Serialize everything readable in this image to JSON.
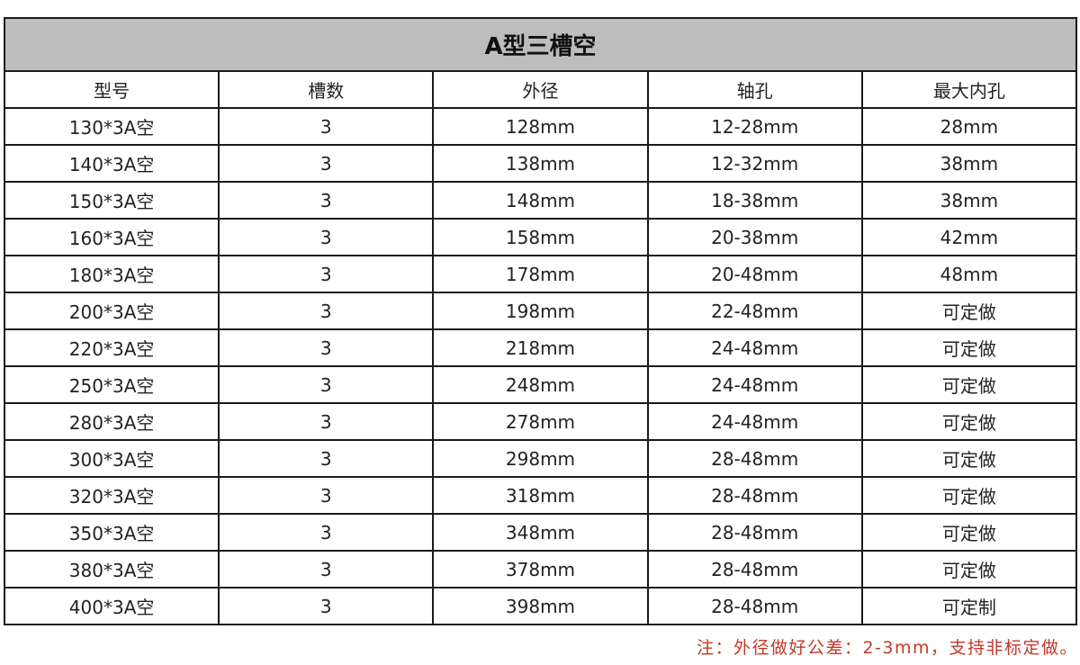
{
  "title": "A型三槽空",
  "columns": [
    "型号",
    "槽数",
    "外径",
    "轴孔",
    "最大内孔"
  ],
  "rows": [
    [
      "130*3A空",
      "3",
      "128mm",
      "12-28mm",
      "28mm"
    ],
    [
      "140*3A空",
      "3",
      "138mm",
      "12-32mm",
      "38mm"
    ],
    [
      "150*3A空",
      "3",
      "148mm",
      "18-38mm",
      "38mm"
    ],
    [
      "160*3A空",
      "3",
      "158mm",
      "20-38mm",
      "42mm"
    ],
    [
      "180*3A空",
      "3",
      "178mm",
      "20-48mm",
      "48mm"
    ],
    [
      "200*3A空",
      "3",
      "198mm",
      "22-48mm",
      "可定做"
    ],
    [
      "220*3A空",
      "3",
      "218mm",
      "24-48mm",
      "可定做"
    ],
    [
      "250*3A空",
      "3",
      "248mm",
      "24-48mm",
      "可定做"
    ],
    [
      "280*3A空",
      "3",
      "278mm",
      "24-48mm",
      "可定做"
    ],
    [
      "300*3A空",
      "3",
      "298mm",
      "28-48mm",
      "可定做"
    ],
    [
      "320*3A空",
      "3",
      "318mm",
      "28-48mm",
      "可定做"
    ],
    [
      "350*3A空",
      "3",
      "348mm",
      "28-48mm",
      "可定做"
    ],
    [
      "380*3A空",
      "3",
      "378mm",
      "28-48mm",
      "可定做"
    ],
    [
      "400*3A空",
      "3",
      "398mm",
      "28-48mm",
      "可定制"
    ]
  ],
  "note": "注：外径做好公差：2-3mm，支持非标定做。",
  "colors": {
    "title_bg": "#bdbdbd",
    "note": "#c0392b",
    "border": "#1a1a1a"
  }
}
